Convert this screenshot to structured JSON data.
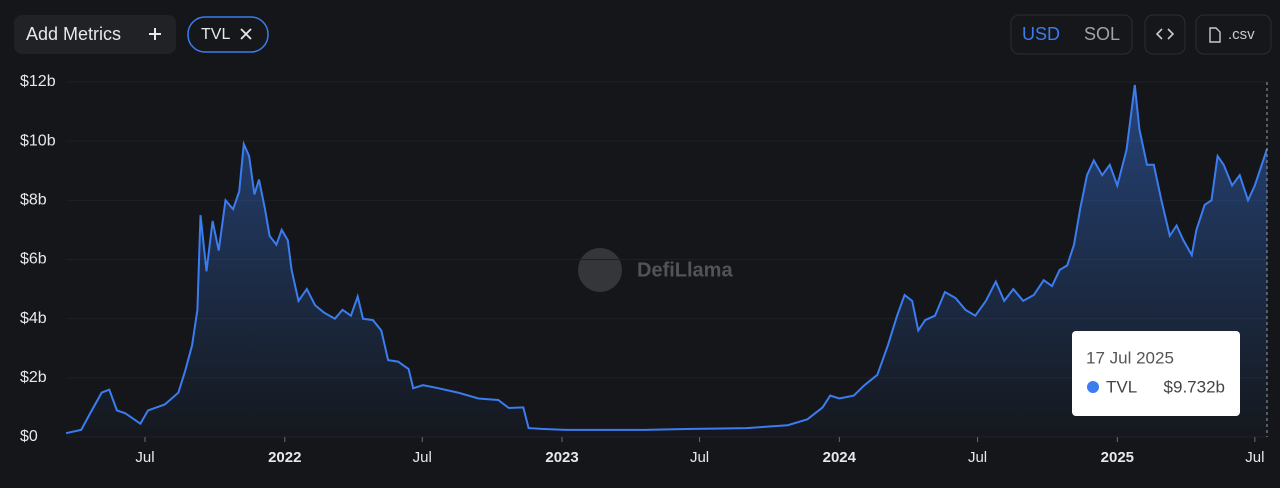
{
  "toolbar": {
    "add_metrics": "Add Metrics",
    "metric_chip": "TVL",
    "currency_options": [
      "USD",
      "SOL"
    ],
    "csv": ".csv"
  },
  "watermark": "DefiLlama",
  "chart_data": {
    "type": "area",
    "x": [
      "2021-03-19",
      "2021-04-08",
      "2021-04-22",
      "2021-05-05",
      "2021-05-15",
      "2021-05-25",
      "2021-06-05",
      "2021-06-25",
      "2021-07-05",
      "2021-07-27",
      "2021-08-14",
      "2021-08-23",
      "2021-09-01",
      "2021-09-08",
      "2021-09-12",
      "2021-09-20",
      "2021-09-28",
      "2021-10-06",
      "2021-10-15",
      "2021-10-25",
      "2021-11-02",
      "2021-11-08",
      "2021-11-15",
      "2021-11-22",
      "2021-11-28",
      "2021-12-06",
      "2021-12-12",
      "2021-12-21",
      "2021-12-28",
      "2022-01-05",
      "2022-01-10",
      "2022-01-19",
      "2022-01-30",
      "2022-02-10",
      "2022-02-22",
      "2022-03-08",
      "2022-03-18",
      "2022-03-29",
      "2022-04-07",
      "2022-04-14",
      "2022-04-27",
      "2022-05-08",
      "2022-05-17",
      "2022-05-30",
      "2022-06-13",
      "2022-06-19",
      "2022-07-02",
      "2022-07-22",
      "2022-08-17",
      "2022-09-13",
      "2022-10-09",
      "2022-10-23",
      "2022-11-11",
      "2022-11-18",
      "2022-12-08",
      "2023-01-06",
      "2023-02-26",
      "2023-04-20",
      "2023-06-13",
      "2023-09-01",
      "2023-10-25",
      "2023-11-20",
      "2023-12-10",
      "2023-12-20",
      "2024-01-01",
      "2024-01-20",
      "2024-02-03",
      "2024-02-20",
      "2024-03-05",
      "2024-03-17",
      "2024-03-27",
      "2024-04-06",
      "2024-04-14",
      "2024-04-23",
      "2024-05-06",
      "2024-05-19",
      "2024-06-02",
      "2024-06-15",
      "2024-06-28",
      "2024-07-12",
      "2024-07-25",
      "2024-08-05",
      "2024-08-17",
      "2024-08-30",
      "2024-09-13",
      "2024-09-26",
      "2024-10-07",
      "2024-10-17",
      "2024-10-27",
      "2024-11-05",
      "2024-11-13",
      "2024-11-22",
      "2024-12-01",
      "2024-12-12",
      "2024-12-22",
      "2025-01-01",
      "2025-01-13",
      "2025-01-24",
      "2025-01-30",
      "2025-02-09",
      "2025-02-18",
      "2025-02-28",
      "2025-03-11",
      "2025-03-20",
      "2025-03-29",
      "2025-04-09",
      "2025-04-15",
      "2025-04-26",
      "2025-05-05",
      "2025-05-13",
      "2025-05-21",
      "2025-06-01",
      "2025-06-11",
      "2025-06-22",
      "2025-07-01",
      "2025-07-12",
      "2025-07-17"
    ],
    "series": [
      {
        "name": "TVL",
        "color": "#3b7cf0",
        "values": [
          0.13,
          0.24,
          0.9,
          1.5,
          1.6,
          0.9,
          0.8,
          0.45,
          0.9,
          1.1,
          1.5,
          2.25,
          3.1,
          4.3,
          7.5,
          5.6,
          7.3,
          6.3,
          8.0,
          7.7,
          8.3,
          9.9,
          9.5,
          8.2,
          8.7,
          7.7,
          6.8,
          6.5,
          7.0,
          6.65,
          5.65,
          4.6,
          5.0,
          4.45,
          4.2,
          4.0,
          4.3,
          4.1,
          4.75,
          4.0,
          3.95,
          3.6,
          2.6,
          2.55,
          2.3,
          1.65,
          1.75,
          1.65,
          1.5,
          1.3,
          1.25,
          0.98,
          1.0,
          0.3,
          0.27,
          0.24,
          0.24,
          0.24,
          0.27,
          0.3,
          0.4,
          0.6,
          1.0,
          1.4,
          1.3,
          1.4,
          1.75,
          2.1,
          3.1,
          4.1,
          4.8,
          4.6,
          3.6,
          3.95,
          4.1,
          4.9,
          4.7,
          4.3,
          4.1,
          4.6,
          5.25,
          4.6,
          5.0,
          4.6,
          4.8,
          5.3,
          5.1,
          5.65,
          5.8,
          6.5,
          7.7,
          8.85,
          9.35,
          8.85,
          9.2,
          8.5,
          9.7,
          11.9,
          10.4,
          9.2,
          9.2,
          8.0,
          6.8,
          7.15,
          6.65,
          6.15,
          7.0,
          7.85,
          8.0,
          9.5,
          9.2,
          8.5,
          8.85,
          8.0,
          8.5,
          9.35,
          9.732
        ]
      }
    ],
    "xlim": [
      "2021-03-19",
      "2025-07-17"
    ],
    "xticks": [
      {
        "value": "2021-07-01",
        "label": "Jul"
      },
      {
        "value": "2022-01-01",
        "label": "2022"
      },
      {
        "value": "2022-07-01",
        "label": "Jul"
      },
      {
        "value": "2023-01-01",
        "label": "2023"
      },
      {
        "value": "2023-07-01",
        "label": "Jul"
      },
      {
        "value": "2024-01-01",
        "label": "2024"
      },
      {
        "value": "2024-07-01",
        "label": "Jul"
      },
      {
        "value": "2025-01-01",
        "label": "2025"
      },
      {
        "value": "2025-07-01",
        "label": "Jul"
      }
    ],
    "ylim": [
      0,
      12
    ],
    "yticks": [
      {
        "value": 0,
        "label": "$0"
      },
      {
        "value": 2,
        "label": "$2b"
      },
      {
        "value": 4,
        "label": "$4b"
      },
      {
        "value": 6,
        "label": "$6b"
      },
      {
        "value": 8,
        "label": "$8b"
      },
      {
        "value": 10,
        "label": "$10b"
      },
      {
        "value": 12,
        "label": "$12b"
      }
    ],
    "grid": true,
    "tooltip": {
      "date": "17 Jul 2025",
      "series": "TVL",
      "value": "$9.732b"
    }
  }
}
